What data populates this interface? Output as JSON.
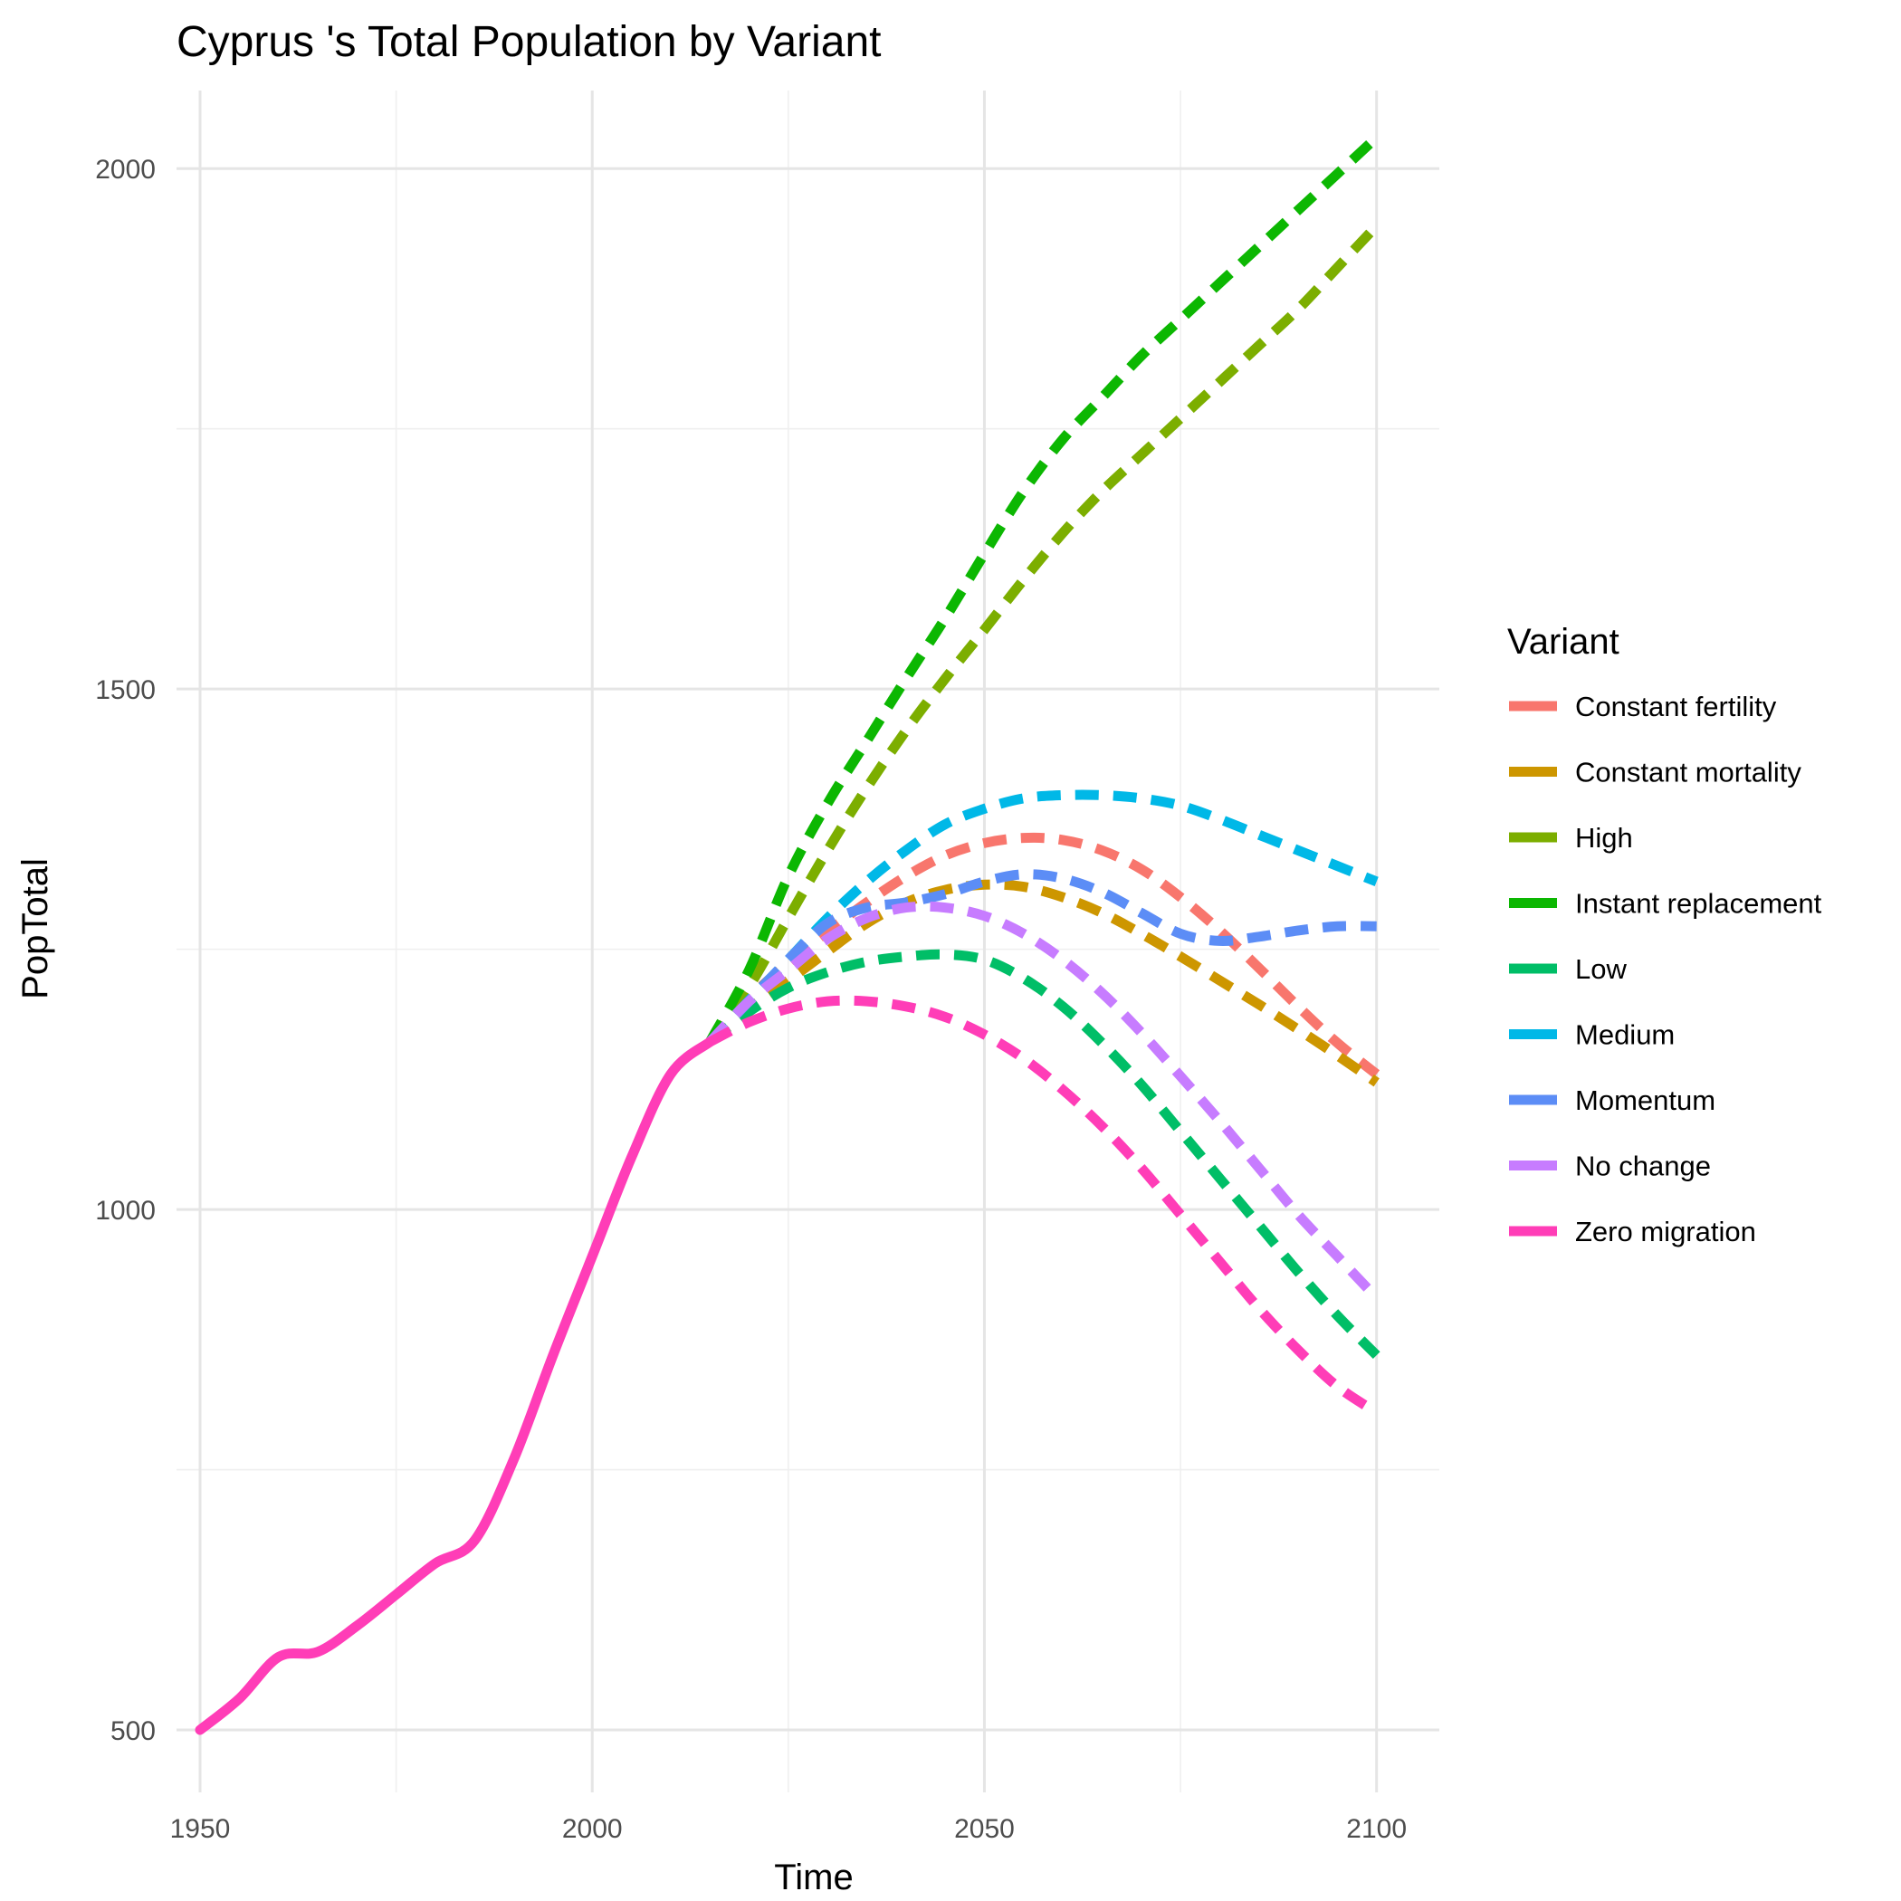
{
  "chart_data": {
    "type": "line",
    "title": "Cyprus 's Total Population by Variant",
    "xlabel": "Time",
    "ylabel": "PopTotal",
    "xlim": [
      1947,
      2108
    ],
    "ylim": [
      440,
      2075
    ],
    "x_ticks": [
      1950,
      2000,
      2050,
      2100
    ],
    "y_ticks": [
      500,
      1000,
      1500,
      2000
    ],
    "grid": true,
    "legend": {
      "title": "Variant",
      "position": "right"
    },
    "series": [
      {
        "name": "Constant fertility",
        "color": "#F8766D",
        "style": "dashed",
        "x": [
          2015,
          2020,
          2025,
          2030,
          2035,
          2040,
          2045,
          2050,
          2055,
          2060,
          2065,
          2070,
          2075,
          2080,
          2085,
          2090,
          2095,
          2100
        ],
        "values": [
          1161,
          1203,
          1237,
          1267,
          1295,
          1320,
          1340,
          1352,
          1357,
          1355,
          1345,
          1327,
          1300,
          1268,
          1232,
          1195,
          1160,
          1130
        ]
      },
      {
        "name": "Constant mortality",
        "color": "#CD9600",
        "style": "dashed",
        "x": [
          2015,
          2020,
          2025,
          2030,
          2035,
          2040,
          2045,
          2050,
          2055,
          2060,
          2065,
          2070,
          2075,
          2080,
          2085,
          2090,
          2095,
          2100
        ],
        "values": [
          1161,
          1193,
          1220,
          1248,
          1275,
          1295,
          1307,
          1312,
          1310,
          1300,
          1285,
          1265,
          1243,
          1220,
          1197,
          1173,
          1148,
          1122
        ]
      },
      {
        "name": "High",
        "color": "#7CAE00",
        "style": "dashed",
        "x": [
          2015,
          2020,
          2025,
          2030,
          2035,
          2040,
          2045,
          2050,
          2055,
          2060,
          2065,
          2070,
          2075,
          2080,
          2085,
          2090,
          2095,
          2100
        ],
        "values": [
          1161,
          1214,
          1280,
          1345,
          1405,
          1460,
          1510,
          1557,
          1605,
          1650,
          1690,
          1725,
          1760,
          1795,
          1830,
          1865,
          1905,
          1945
        ]
      },
      {
        "name": "Instant replacement",
        "color": "#0CB702",
        "style": "dashed",
        "x": [
          2015,
          2020,
          2025,
          2030,
          2035,
          2040,
          2045,
          2050,
          2055,
          2060,
          2065,
          2070,
          2075,
          2080,
          2085,
          2090,
          2095,
          2100
        ],
        "values": [
          1161,
          1230,
          1320,
          1390,
          1450,
          1510,
          1568,
          1630,
          1690,
          1740,
          1780,
          1820,
          1855,
          1890,
          1925,
          1960,
          1995,
          2030
        ]
      },
      {
        "name": "Low",
        "color": "#00BE67",
        "style": "dashed",
        "x": [
          2015,
          2020,
          2025,
          2030,
          2035,
          2040,
          2045,
          2050,
          2055,
          2060,
          2065,
          2070,
          2075,
          2080,
          2085,
          2090,
          2095,
          2100
        ],
        "values": [
          1161,
          1190,
          1213,
          1228,
          1238,
          1243,
          1245,
          1240,
          1222,
          1195,
          1160,
          1120,
          1075,
          1030,
          985,
          940,
          898,
          860
        ]
      },
      {
        "name": "Medium",
        "color": "#00B8E7",
        "style": "dashed",
        "x": [
          2015,
          2020,
          2025,
          2030,
          2035,
          2040,
          2045,
          2050,
          2055,
          2060,
          2065,
          2070,
          2075,
          2080,
          2085,
          2090,
          2095,
          2100
        ],
        "values": [
          1161,
          1201,
          1240,
          1280,
          1315,
          1345,
          1370,
          1385,
          1395,
          1398,
          1398,
          1395,
          1388,
          1375,
          1360,
          1345,
          1330,
          1315
        ]
      },
      {
        "name": "Momentum",
        "color": "#5C8DF6",
        "style": "dashed",
        "x": [
          2015,
          2020,
          2025,
          2030,
          2035,
          2040,
          2045,
          2050,
          2055,
          2060,
          2065,
          2070,
          2075,
          2080,
          2085,
          2090,
          2095,
          2100
        ],
        "values": [
          1161,
          1200,
          1240,
          1275,
          1290,
          1295,
          1303,
          1315,
          1322,
          1318,
          1305,
          1285,
          1265,
          1258,
          1262,
          1268,
          1272,
          1272
        ]
      },
      {
        "name": "No change",
        "color": "#C77CFF",
        "style": "dashed",
        "x": [
          2015,
          2020,
          2025,
          2030,
          2035,
          2040,
          2045,
          2050,
          2055,
          2060,
          2065,
          2070,
          2075,
          2080,
          2085,
          2090,
          2095,
          2100
        ],
        "values": [
          1161,
          1200,
          1230,
          1260,
          1280,
          1290,
          1290,
          1282,
          1265,
          1240,
          1208,
          1170,
          1128,
          1085,
          1040,
          995,
          955,
          915
        ]
      },
      {
        "name": "Zero migration",
        "color": "#FF3DB7",
        "style": "dashed",
        "x": [
          2015,
          2020,
          2025,
          2030,
          2035,
          2040,
          2045,
          2050,
          2055,
          2060,
          2065,
          2070,
          2075,
          2080,
          2085,
          2090,
          2095,
          2100
        ],
        "values": [
          1161,
          1180,
          1193,
          1200,
          1200,
          1195,
          1185,
          1168,
          1145,
          1115,
          1080,
          1040,
          995,
          950,
          905,
          865,
          830,
          805
        ]
      }
    ],
    "history": {
      "color": "#FF3DB7",
      "style": "solid",
      "x": [
        1950,
        1955,
        1960,
        1965,
        1970,
        1975,
        1980,
        1985,
        1990,
        1995,
        2000,
        2005,
        2010,
        2015
      ],
      "values": [
        500,
        530,
        570,
        575,
        600,
        630,
        660,
        682,
        760,
        860,
        955,
        1050,
        1130,
        1161
      ]
    }
  }
}
